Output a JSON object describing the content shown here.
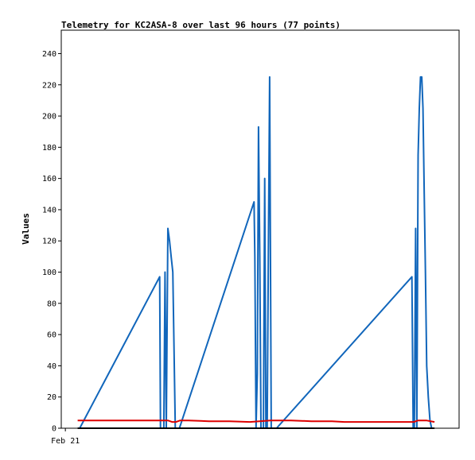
{
  "chart_data": {
    "type": "line",
    "title": "Telemetry for KC2ASA-8 over last 96 hours (77 points)",
    "xlabel": "",
    "ylabel": "Values",
    "x_tick_labels": [
      {
        "x": 0,
        "label": "Feb 21"
      }
    ],
    "xlim": [
      -1,
      96
    ],
    "ylim": [
      0,
      255
    ],
    "y_ticks": [
      0,
      20,
      40,
      60,
      80,
      100,
      120,
      140,
      160,
      180,
      200,
      220,
      240
    ],
    "grid": false,
    "legend": "none",
    "series": [
      {
        "color": "#1166bb",
        "x": [
          3.0,
          3.5,
          23.0,
          23.2,
          23.4,
          24.0,
          24.3,
          24.6,
          25.0,
          25.4,
          25.8,
          26.2,
          26.8,
          27.3,
          27.8,
          46.0,
          46.2,
          46.5,
          46.8,
          47.1,
          47.4,
          47.7,
          48.0,
          48.3,
          48.6,
          48.9,
          49.2,
          49.5,
          49.8,
          50.2,
          50.5,
          50.8,
          51.2,
          51.5,
          84.5,
          84.8,
          85.1,
          85.4,
          85.7,
          86.0,
          86.3,
          86.6,
          86.9,
          87.2,
          87.5,
          87.8,
          88.1,
          88.5,
          88.9,
          89.3,
          89.6,
          89.9
        ],
        "y": [
          0,
          0,
          97,
          0,
          0,
          0,
          100,
          0,
          128,
          120,
          110,
          100,
          0,
          0,
          0,
          145,
          110,
          0,
          35,
          193,
          110,
          0,
          0,
          0,
          160,
          0,
          0,
          112,
          225,
          0,
          0,
          0,
          0,
          0,
          97,
          0,
          0,
          128,
          0,
          175,
          205,
          225,
          225,
          205,
          150,
          100,
          40,
          20,
          5,
          0,
          0,
          0
        ]
      },
      {
        "color": "#dd0000",
        "x": [
          3,
          10,
          20,
          25,
          26,
          27,
          28,
          30,
          35,
          40,
          45,
          50,
          55,
          60,
          65,
          68,
          70,
          75,
          80,
          85,
          86,
          88,
          90
        ],
        "y": [
          5,
          5,
          5,
          5,
          4,
          4,
          5,
          5,
          4.5,
          4.5,
          4,
          5,
          5,
          4.5,
          4.5,
          4,
          4,
          4,
          4,
          4,
          5,
          5,
          4
        ]
      },
      {
        "color": "#000000",
        "x": [
          3,
          90
        ],
        "y": [
          0,
          0
        ]
      }
    ]
  }
}
